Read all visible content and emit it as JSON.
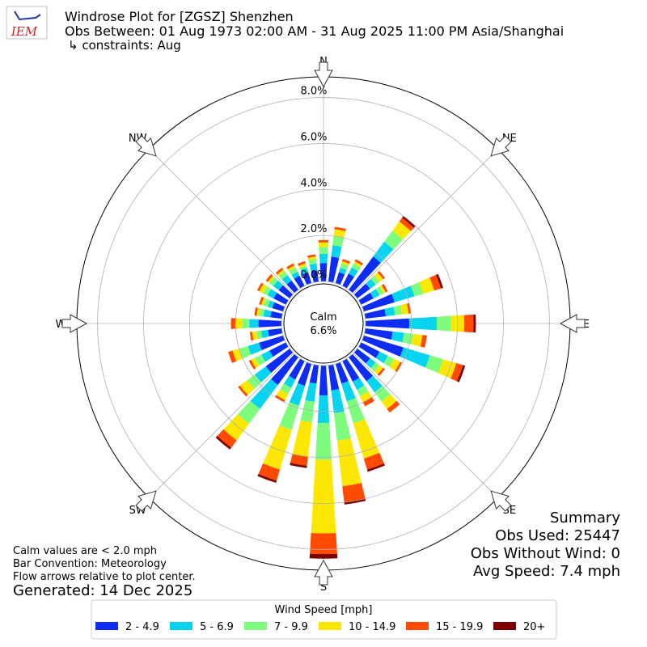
{
  "chart_data": {
    "type": "windrose",
    "title": "Windrose Plot for [ZGSZ] Shenzhen",
    "subtitle": "Obs Between: 01 Aug 1973 02:00 AM - 31 Aug 2025 11:00 PM Asia/Shanghai",
    "constraints": "↳ constraints: Aug",
    "x": [
      0,
      10,
      20,
      30,
      40,
      50,
      60,
      70,
      80,
      90,
      100,
      110,
      120,
      130,
      140,
      150,
      160,
      170,
      180,
      190,
      200,
      210,
      220,
      230,
      240,
      250,
      260,
      270,
      280,
      290,
      300,
      310,
      320,
      330,
      340,
      350
    ],
    "xlim": [
      0,
      360
    ],
    "xticks": [
      {
        "value": 0,
        "label": "N"
      },
      {
        "value": 45,
        "label": "NE"
      },
      {
        "value": 90,
        "label": "E"
      },
      {
        "value": 135,
        "label": "SE"
      },
      {
        "value": 180,
        "label": "S"
      },
      {
        "value": 225,
        "label": "SW"
      },
      {
        "value": 270,
        "label": "W"
      },
      {
        "value": 315,
        "label": "NW"
      }
    ],
    "ylim": [
      0,
      8.9
    ],
    "yticks": [
      {
        "value": 0,
        "label": "0.0%"
      },
      {
        "value": 2,
        "label": "2.0%"
      },
      {
        "value": 4,
        "label": "4.0%"
      },
      {
        "value": 6,
        "label": "6.0%"
      },
      {
        "value": 8,
        "label": "8.0%"
      }
    ],
    "grid": true,
    "calm_label": "Calm",
    "calm_value": 6.6,
    "calm_value_label": "6.6%",
    "legend_title": "Wind Speed [mph]",
    "legend": "bottom",
    "series": [
      {
        "name": "2 - 4.9",
        "color": "#0d2df5",
        "values": [
          0.8,
          1.1,
          0.5,
          0.6,
          1.8,
          0.7,
          0.6,
          1.4,
          0.9,
          1.9,
          1.2,
          1.8,
          0.9,
          0.7,
          1.3,
          1.0,
          0.9,
          1.1,
          1.3,
          0.8,
          1.0,
          0.9,
          1.5,
          1.3,
          0.8,
          1.1,
          0.6,
          1.0,
          0.5,
          0.5,
          0.6,
          0.6,
          0.5,
          0.5,
          0.5,
          0.5
        ]
      },
      {
        "name": "5 - 6.9",
        "color": "#05d4f0",
        "values": [
          0.4,
          0.5,
          0.2,
          0.3,
          0.8,
          0.3,
          0.3,
          0.9,
          0.4,
          1.2,
          0.5,
          1.2,
          0.4,
          0.3,
          0.6,
          0.4,
          0.8,
          1.0,
          1.2,
          0.8,
          0.9,
          0.4,
          1.3,
          0.6,
          0.4,
          0.5,
          0.3,
          0.4,
          0.3,
          0.2,
          0.3,
          0.3,
          0.3,
          0.2,
          0.2,
          0.3
        ]
      },
      {
        "name": "7 - 9.9",
        "color": "#7dfc7d",
        "values": [
          0.3,
          0.4,
          0.2,
          0.2,
          0.6,
          0.2,
          0.2,
          0.4,
          0.3,
          0.6,
          0.4,
          0.6,
          0.3,
          0.2,
          0.5,
          0.3,
          1.0,
          1.2,
          1.6,
          0.9,
          1.1,
          0.3,
          0.8,
          0.4,
          0.3,
          0.4,
          0.2,
          0.3,
          0.2,
          0.2,
          0.2,
          0.2,
          0.2,
          0.2,
          0.1,
          0.2
        ]
      },
      {
        "name": "10 - 14.9",
        "color": "#fce700",
        "values": [
          0.2,
          0.3,
          0.1,
          0.1,
          0.5,
          0.2,
          0.1,
          0.5,
          0.3,
          0.6,
          0.4,
          0.6,
          0.3,
          0.2,
          0.4,
          0.3,
          1.6,
          2.0,
          3.2,
          1.5,
          1.8,
          0.3,
          0.9,
          0.4,
          0.2,
          0.3,
          0.2,
          0.3,
          0.1,
          0.1,
          0.2,
          0.1,
          0.1,
          0.1,
          0.1,
          0.1
        ]
      },
      {
        "name": "15 - 19.9",
        "color": "#ff4a00",
        "values": [
          0.1,
          0.1,
          0.1,
          0.1,
          0.2,
          0.1,
          0.1,
          0.3,
          0.1,
          0.4,
          0.2,
          0.3,
          0.1,
          0.1,
          0.2,
          0.2,
          0.5,
          0.7,
          0.9,
          0.4,
          0.5,
          0.1,
          0.4,
          0.1,
          0.1,
          0.2,
          0.1,
          0.2,
          0.1,
          0.1,
          0.1,
          0.1,
          0.1,
          0.1,
          0.1,
          0.1
        ]
      },
      {
        "name": "20+",
        "color": "#7f0000",
        "values": [
          0,
          0,
          0,
          0,
          0.1,
          0,
          0,
          0.1,
          0,
          0.1,
          0,
          0.1,
          0,
          0,
          0,
          0,
          0.1,
          0.1,
          0.2,
          0.1,
          0.1,
          0,
          0.1,
          0,
          0,
          0,
          0,
          0,
          0,
          0,
          0,
          0,
          0,
          0,
          0,
          0
        ]
      }
    ],
    "notes": [
      "Calm values are < 2.0 mph",
      "Bar Convention: Meteorology",
      "Flow arrows relative to plot center."
    ],
    "generated": "Generated: 14 Dec 2025",
    "summary_title": "Summary",
    "summary_lines": [
      "Obs Used: 25447",
      "Obs Without Wind: 0",
      "Avg Speed: 7.4 mph"
    ],
    "logo_text": "IEM"
  }
}
